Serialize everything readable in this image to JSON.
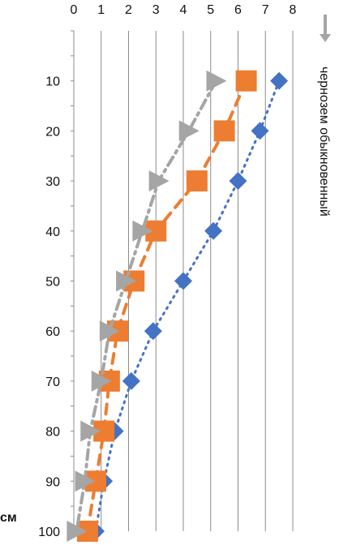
{
  "chart_data": {
    "type": "scatter",
    "title": "",
    "xlabel": "",
    "ylabel": "см",
    "x_ticks": [
      0,
      1,
      2,
      3,
      4,
      5,
      6,
      7,
      8
    ],
    "y_ticks": [
      10,
      20,
      30,
      40,
      50,
      60,
      70,
      80,
      90,
      100
    ],
    "xlim": [
      0,
      8
    ],
    "ylim": [
      0,
      100
    ],
    "x_axis_position": "top",
    "y_axis_direction": "downward",
    "grid": "vertical",
    "legend_position": "right, vertical",
    "series": [
      {
        "name": "",
        "marker": "diamond",
        "line": "dotted",
        "color": "#4472C4",
        "points": [
          {
            "x": 7.5,
            "y": 10
          },
          {
            "x": 6.8,
            "y": 20
          },
          {
            "x": 6.0,
            "y": 30
          },
          {
            "x": 5.1,
            "y": 40
          },
          {
            "x": 4.0,
            "y": 50
          },
          {
            "x": 2.9,
            "y": 60
          },
          {
            "x": 2.1,
            "y": 70
          },
          {
            "x": 1.5,
            "y": 80
          },
          {
            "x": 1.1,
            "y": 90
          },
          {
            "x": 0.8,
            "y": 100
          }
        ]
      },
      {
        "name": "",
        "marker": "square",
        "line": "dashed",
        "color": "#ED7D31",
        "points": [
          {
            "x": 6.3,
            "y": 10
          },
          {
            "x": 5.5,
            "y": 20
          },
          {
            "x": 4.5,
            "y": 30
          },
          {
            "x": 3.0,
            "y": 40
          },
          {
            "x": 2.2,
            "y": 50
          },
          {
            "x": 1.6,
            "y": 60
          },
          {
            "x": 1.3,
            "y": 70
          },
          {
            "x": 1.1,
            "y": 80
          },
          {
            "x": 0.8,
            "y": 90
          },
          {
            "x": 0.5,
            "y": 100
          }
        ]
      },
      {
        "name": "чернозем обыкновенный",
        "marker": "triangle-right",
        "line": "dash-dot",
        "color": "#A5A5A5",
        "points": [
          {
            "x": 5.2,
            "y": 10
          },
          {
            "x": 4.2,
            "y": 20
          },
          {
            "x": 3.1,
            "y": 30
          },
          {
            "x": 2.5,
            "y": 40
          },
          {
            "x": 1.9,
            "y": 50
          },
          {
            "x": 1.3,
            "y": 60
          },
          {
            "x": 1.0,
            "y": 70
          },
          {
            "x": 0.6,
            "y": 80
          },
          {
            "x": 0.4,
            "y": 90
          },
          {
            "x": 0.1,
            "y": 100
          }
        ]
      }
    ]
  }
}
